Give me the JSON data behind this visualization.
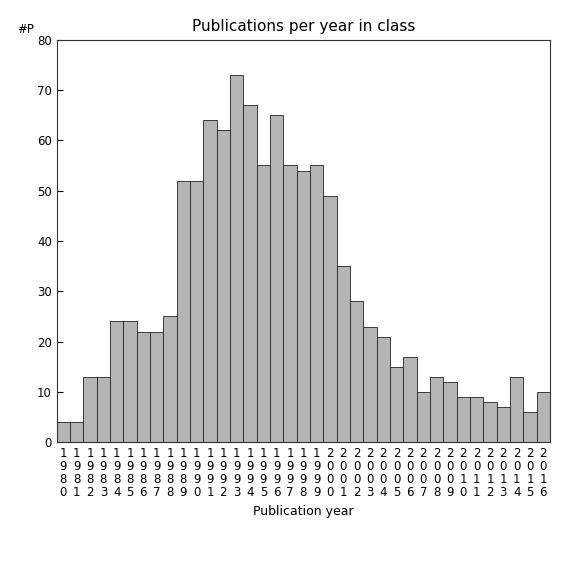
{
  "title": "Publications per year in class",
  "xlabel": "Publication year",
  "ylabel": "#P",
  "bar_color": "#b5b5b5",
  "bar_edge_color": "#222222",
  "years": [
    "1980",
    "1981",
    "1982",
    "1983",
    "1984",
    "1985",
    "1986",
    "1987",
    "1988",
    "1989",
    "1990",
    "1991",
    "1992",
    "1993",
    "1994",
    "1995",
    "1996",
    "1997",
    "1998",
    "1999",
    "2000",
    "2001",
    "2002",
    "2003",
    "2004",
    "2005",
    "2006",
    "2007",
    "2008",
    "2009",
    "2010",
    "2011",
    "2012",
    "2013",
    "2014",
    "2015",
    "2016"
  ],
  "values": [
    4,
    4,
    13,
    13,
    24,
    24,
    22,
    22,
    25,
    52,
    52,
    64,
    62,
    73,
    67,
    55,
    65,
    55,
    54,
    55,
    49,
    35,
    28,
    23,
    21,
    15,
    17,
    10,
    13,
    12,
    9,
    9,
    8,
    7,
    13,
    6,
    10
  ],
  "ylim": [
    0,
    80
  ],
  "yticks": [
    0,
    10,
    20,
    30,
    40,
    50,
    60,
    70,
    80
  ],
  "background_color": "#ffffff",
  "title_fontsize": 11,
  "label_fontsize": 9,
  "tick_fontsize": 8.5
}
